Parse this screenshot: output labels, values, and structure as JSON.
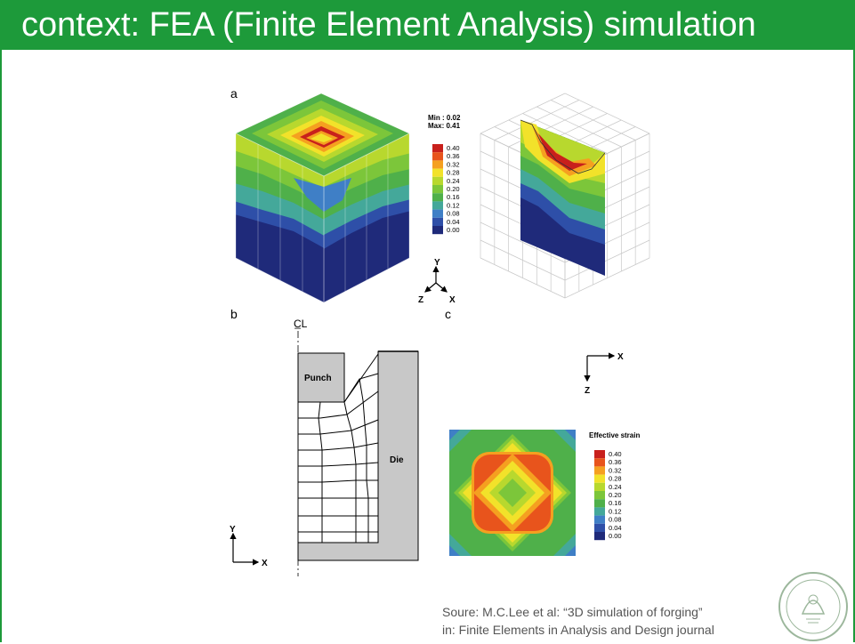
{
  "slide": {
    "title": "context: FEA (Finite Element Analysis) simulation",
    "source_line1": "Soure: M.C.Lee et al: “3D simulation of forging”",
    "source_line2": "in: Finite Elements in Analysis and Design journal"
  },
  "figure": {
    "panel_a_label": "a",
    "panel_b_label": "b",
    "panel_c_label": "c",
    "min_label": "Min : 0.02",
    "max_label": "Max: 0.41",
    "legend_a_values": [
      "0.40",
      "0.36",
      "0.32",
      "0.28",
      "0.24",
      "0.20",
      "0.16",
      "0.12",
      "0.08",
      "0.04",
      "0.00"
    ],
    "legend_c_title": "Effective strain",
    "legend_c_values": [
      "0.40",
      "0.36",
      "0.32",
      "0.28",
      "0.24",
      "0.20",
      "0.16",
      "0.12",
      "0.08",
      "0.04",
      "0.00"
    ],
    "legend_colors": [
      "#c8201c",
      "#e8541c",
      "#f5a020",
      "#f2e22a",
      "#b8d82e",
      "#7cc63a",
      "#4fb04a",
      "#44a89a",
      "#3f7fc6",
      "#2e4fa8",
      "#1f2a7a"
    ],
    "axis_a": {
      "y": "Y",
      "z": "Z",
      "x": "X"
    },
    "axis_b": {
      "y": "Y",
      "x": "X"
    },
    "axis_c": {
      "x": "X",
      "z": "Z"
    },
    "centerline_symbol": "C̲L",
    "punch_label": "Punch",
    "die_label": "Die"
  },
  "colors": {
    "title_bar": "#1d9a3a",
    "title_text": "#ffffff",
    "die_fill": "#c8c8c8"
  }
}
